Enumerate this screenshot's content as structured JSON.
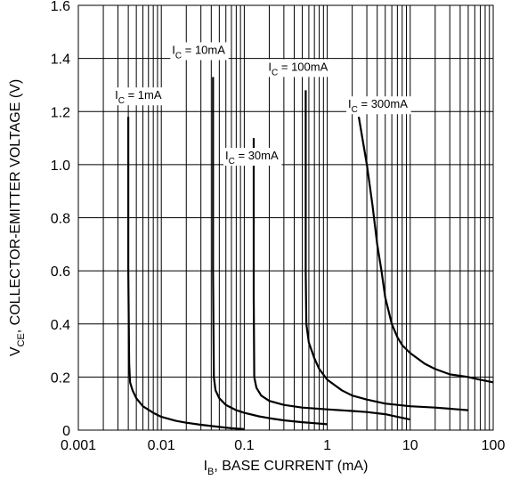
{
  "chart_data": {
    "type": "line",
    "title": "",
    "xlabel": {
      "main": "I",
      "sub": "B",
      "rest": ", BASE CURRENT (mA)"
    },
    "ylabel": {
      "main": "V",
      "sub": "CE",
      "rest": ", COLLECTOR-EMITTER VOLTAGE (V)"
    },
    "x_scale": "log",
    "xlim": [
      0.001,
      100
    ],
    "ylim": [
      0,
      1.6
    ],
    "x_ticks": [
      {
        "value": 0.001,
        "label": "0.001"
      },
      {
        "value": 0.01,
        "label": "0.01"
      },
      {
        "value": 0.1,
        "label": "0.1"
      },
      {
        "value": 1,
        "label": "1"
      },
      {
        "value": 10,
        "label": "10"
      },
      {
        "value": 100,
        "label": "100"
      }
    ],
    "y_ticks": [
      {
        "value": 0,
        "label": "0"
      },
      {
        "value": 0.2,
        "label": "0.2"
      },
      {
        "value": 0.4,
        "label": "0.4"
      },
      {
        "value": 0.6,
        "label": "0.6"
      },
      {
        "value": 0.8,
        "label": "0.8"
      },
      {
        "value": 1.0,
        "label": "1.0"
      },
      {
        "value": 1.2,
        "label": "1.2"
      },
      {
        "value": 1.4,
        "label": "1.4"
      },
      {
        "value": 1.6,
        "label": "1.6"
      }
    ],
    "grid": true,
    "series": [
      {
        "name": "I_C = 1mA",
        "label": {
          "main": "I",
          "sub": "C",
          "rest": " = 1mA"
        },
        "points": [
          [
            0.004,
            1.18
          ],
          [
            0.004,
            0.6
          ],
          [
            0.0041,
            0.25
          ],
          [
            0.0042,
            0.18
          ],
          [
            0.0045,
            0.15
          ],
          [
            0.005,
            0.12
          ],
          [
            0.006,
            0.09
          ],
          [
            0.008,
            0.065
          ],
          [
            0.01,
            0.05
          ],
          [
            0.015,
            0.035
          ],
          [
            0.02,
            0.028
          ],
          [
            0.03,
            0.02
          ],
          [
            0.05,
            0.012
          ],
          [
            0.07,
            0.007
          ],
          [
            0.1,
            0.004
          ]
        ]
      },
      {
        "name": "I_C = 10mA",
        "label": {
          "main": "I",
          "sub": "C",
          "rest": " = 10mA"
        },
        "points": [
          [
            0.042,
            1.33
          ],
          [
            0.042,
            0.6
          ],
          [
            0.043,
            0.2
          ],
          [
            0.045,
            0.15
          ],
          [
            0.05,
            0.12
          ],
          [
            0.06,
            0.095
          ],
          [
            0.08,
            0.075
          ],
          [
            0.1,
            0.065
          ],
          [
            0.15,
            0.052
          ],
          [
            0.2,
            0.045
          ],
          [
            0.3,
            0.037
          ],
          [
            0.5,
            0.03
          ],
          [
            0.7,
            0.026
          ],
          [
            1.0,
            0.022
          ]
        ]
      },
      {
        "name": "I_C = 30mA",
        "label": {
          "main": "I",
          "sub": "C",
          "rest": " = 30mA"
        },
        "points": [
          [
            0.13,
            1.1
          ],
          [
            0.13,
            0.5
          ],
          [
            0.132,
            0.2
          ],
          [
            0.14,
            0.16
          ],
          [
            0.16,
            0.13
          ],
          [
            0.2,
            0.11
          ],
          [
            0.3,
            0.095
          ],
          [
            0.5,
            0.085
          ],
          [
            1.0,
            0.078
          ],
          [
            2.0,
            0.072
          ],
          [
            3.0,
            0.068
          ],
          [
            5.0,
            0.06
          ],
          [
            7.0,
            0.05
          ],
          [
            10.0,
            0.04
          ]
        ]
      },
      {
        "name": "I_C = 100mA",
        "label": {
          "main": "I",
          "sub": "C",
          "rest": " = 100mA"
        },
        "points": [
          [
            0.55,
            1.28
          ],
          [
            0.55,
            0.6
          ],
          [
            0.56,
            0.4
          ],
          [
            0.6,
            0.33
          ],
          [
            0.7,
            0.27
          ],
          [
            0.8,
            0.23
          ],
          [
            1.0,
            0.19
          ],
          [
            1.5,
            0.15
          ],
          [
            2.0,
            0.13
          ],
          [
            3.0,
            0.115
          ],
          [
            5.0,
            0.1
          ],
          [
            10.0,
            0.09
          ],
          [
            20.0,
            0.085
          ],
          [
            50.0,
            0.075
          ]
        ]
      },
      {
        "name": "I_C = 300mA",
        "label": {
          "main": "I",
          "sub": "C",
          "rest": " = 300mA"
        },
        "points": [
          [
            2.4,
            1.18
          ],
          [
            3.0,
            1.0
          ],
          [
            3.5,
            0.85
          ],
          [
            4.0,
            0.7
          ],
          [
            4.5,
            0.6
          ],
          [
            5.0,
            0.5
          ],
          [
            6.0,
            0.4
          ],
          [
            7.0,
            0.35
          ],
          [
            8.0,
            0.32
          ],
          [
            10.0,
            0.29
          ],
          [
            15.0,
            0.25
          ],
          [
            20.0,
            0.23
          ],
          [
            30.0,
            0.21
          ],
          [
            50.0,
            0.2
          ],
          [
            70.0,
            0.19
          ],
          [
            100.0,
            0.18
          ]
        ]
      }
    ]
  }
}
